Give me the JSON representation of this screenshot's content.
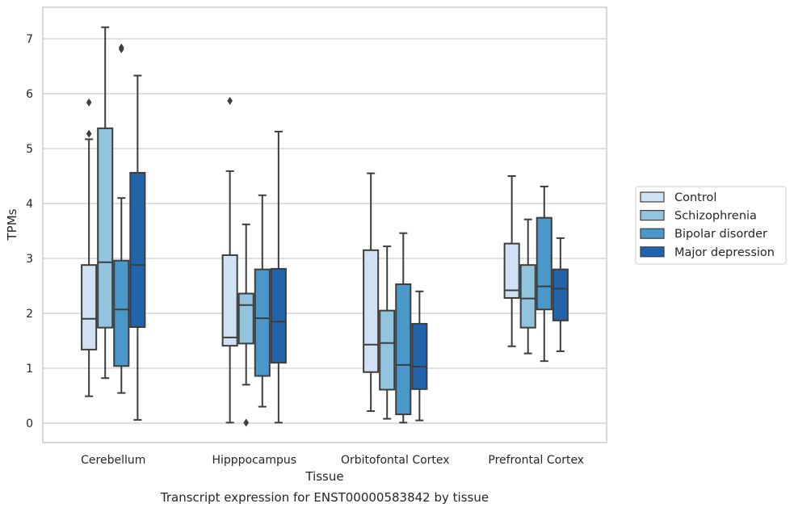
{
  "chart_data": {
    "type": "box",
    "title": "",
    "caption": "Transcript expression for ENST00000583842 by tissue",
    "xlabel": "Tissue",
    "ylabel": "TPMs",
    "ylim": [
      -0.35,
      7.6
    ],
    "yticks": [
      0,
      1,
      2,
      3,
      4,
      5,
      6,
      7
    ],
    "grid": true,
    "legend_position": "right",
    "categories": [
      "Cerebellum",
      "Hipppocampus",
      "Orbitofontal Cortex",
      "Prefrontal Cortex"
    ],
    "series": [
      {
        "name": "Control",
        "color": "#cfe1f2",
        "boxes": [
          {
            "whisker_low": 0.49,
            "q1": 1.34,
            "median": 1.9,
            "q3": 2.88,
            "whisker_high": 5.17,
            "outliers": [
              5.27,
              5.84
            ]
          },
          {
            "whisker_low": 0.01,
            "q1": 1.41,
            "median": 1.56,
            "q3": 3.06,
            "whisker_high": 4.59,
            "outliers": [
              5.87
            ]
          },
          {
            "whisker_low": 0.22,
            "q1": 0.93,
            "median": 1.43,
            "q3": 3.15,
            "whisker_high": 4.55,
            "outliers": []
          },
          {
            "whisker_low": 1.4,
            "q1": 2.28,
            "median": 2.42,
            "q3": 3.27,
            "whisker_high": 4.5,
            "outliers": []
          }
        ]
      },
      {
        "name": "Schizophrenia",
        "color": "#93c4de",
        "boxes": [
          {
            "whisker_low": 0.82,
            "q1": 1.74,
            "median": 2.93,
            "q3": 5.37,
            "whisker_high": 7.21,
            "outliers": []
          },
          {
            "whisker_low": 0.7,
            "q1": 1.45,
            "median": 2.15,
            "q3": 2.36,
            "whisker_high": 3.62,
            "outliers": [
              0.01
            ]
          },
          {
            "whisker_low": 0.08,
            "q1": 0.61,
            "median": 1.46,
            "q3": 2.05,
            "whisker_high": 3.22,
            "outliers": []
          },
          {
            "whisker_low": 1.27,
            "q1": 1.74,
            "median": 2.27,
            "q3": 2.88,
            "whisker_high": 3.71,
            "outliers": []
          }
        ]
      },
      {
        "name": "Bipolar disorder",
        "color": "#4a98c9",
        "boxes": [
          {
            "whisker_low": 0.55,
            "q1": 1.04,
            "median": 2.07,
            "q3": 2.96,
            "whisker_high": 4.1,
            "outliers": [
              6.81,
              6.84
            ]
          },
          {
            "whisker_low": 0.3,
            "q1": 0.86,
            "median": 1.91,
            "q3": 2.8,
            "whisker_high": 4.15,
            "outliers": []
          },
          {
            "whisker_low": 0.01,
            "q1": 0.16,
            "median": 1.06,
            "q3": 2.53,
            "whisker_high": 3.46,
            "outliers": []
          },
          {
            "whisker_low": 1.13,
            "q1": 2.07,
            "median": 2.49,
            "q3": 3.74,
            "whisker_high": 4.31,
            "outliers": []
          }
        ]
      },
      {
        "name": "Major depression",
        "color": "#2164ab",
        "boxes": [
          {
            "whisker_low": 0.06,
            "q1": 1.75,
            "median": 2.88,
            "q3": 4.56,
            "whisker_high": 6.33,
            "outliers": []
          },
          {
            "whisker_low": 0.01,
            "q1": 1.1,
            "median": 1.85,
            "q3": 2.81,
            "whisker_high": 5.31,
            "outliers": []
          },
          {
            "whisker_low": 0.05,
            "q1": 0.62,
            "median": 1.03,
            "q3": 1.81,
            "whisker_high": 2.4,
            "outliers": []
          },
          {
            "whisker_low": 1.31,
            "q1": 1.87,
            "median": 2.45,
            "q3": 2.8,
            "whisker_high": 3.37,
            "outliers": []
          }
        ]
      }
    ]
  }
}
